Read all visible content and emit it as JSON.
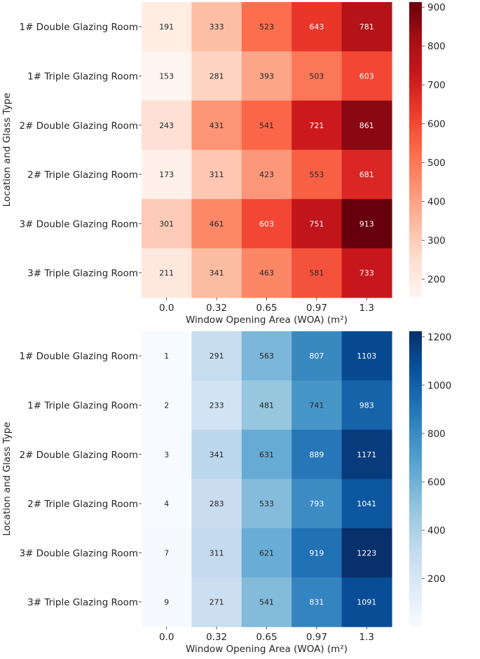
{
  "chart_data": [
    {
      "type": "heatmap",
      "colormap": "Reds",
      "title": "",
      "xlabel": "Window Opening Area (WOA) (m²)",
      "ylabel": "Location and Glass Type",
      "x_categories": [
        "0.0",
        "0.32",
        "0.65",
        "0.97",
        "1.3"
      ],
      "y_categories": [
        "1# Double Glazing Room",
        "1# Triple Glazing Room",
        "2# Double Glazing Room",
        "2# Triple Glazing Room",
        "3# Double Glazing Room",
        "3# Triple Glazing Room"
      ],
      "values": [
        [
          191,
          333,
          523,
          643,
          781
        ],
        [
          153,
          281,
          393,
          503,
          603
        ],
        [
          243,
          431,
          541,
          721,
          861
        ],
        [
          173,
          311,
          423,
          553,
          681
        ],
        [
          301,
          461,
          603,
          751,
          913
        ],
        [
          211,
          341,
          463,
          581,
          733
        ]
      ],
      "vmin": 153,
      "vmax": 913,
      "colorbar_ticks": [
        200,
        300,
        400,
        500,
        600,
        700,
        800,
        900
      ],
      "colorbar_tick_labels": [
        "200",
        "300",
        "400",
        "500",
        "600",
        "700",
        "800",
        "900"
      ]
    },
    {
      "type": "heatmap",
      "colormap": "Blues",
      "title": "",
      "xlabel": "Window Opening Area (WOA) (m²)",
      "ylabel": "Location and Glass Type",
      "x_categories": [
        "0.0",
        "0.32",
        "0.65",
        "0.97",
        "1.3"
      ],
      "y_categories": [
        "1# Double Glazing Room",
        "1# Triple Glazing Room",
        "2# Double Glazing Room",
        "2# Triple Glazing Room",
        "3# Double Glazing Room",
        "3# Triple Glazing Room"
      ],
      "values": [
        [
          1,
          291,
          563,
          807,
          1103
        ],
        [
          2,
          233,
          481,
          741,
          983
        ],
        [
          3,
          341,
          631,
          889,
          1171
        ],
        [
          4,
          283,
          533,
          793,
          1041
        ],
        [
          7,
          311,
          621,
          919,
          1223
        ],
        [
          9,
          271,
          541,
          831,
          1091
        ]
      ],
      "vmin": 1,
      "vmax": 1223,
      "colorbar_ticks": [
        200,
        400,
        600,
        800,
        1000,
        1200
      ],
      "colorbar_tick_labels": [
        "200",
        "400",
        "600",
        "800",
        "1000",
        "1200"
      ]
    }
  ]
}
